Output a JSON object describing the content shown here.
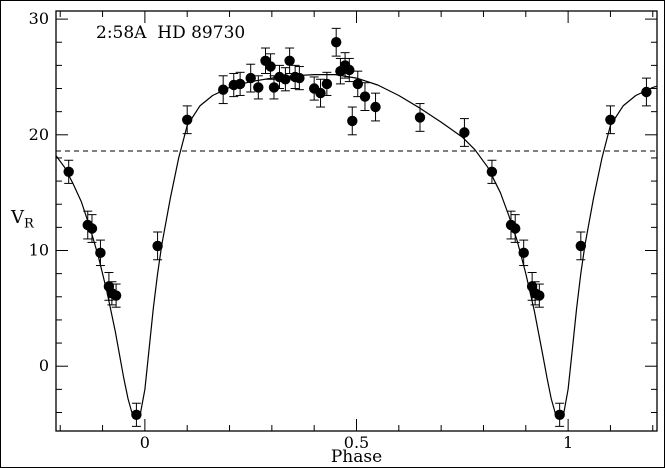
{
  "chart_data": {
    "type": "scatter",
    "title": "2:58A  HD 89730",
    "xlabel": "Phase",
    "ylabel": "V_R",
    "ylabel_display": {
      "main": "V",
      "sub": "R"
    },
    "xlim": [
      -0.21,
      1.21
    ],
    "ylim": [
      -5.6,
      30.7
    ],
    "x_major_ticks": [
      0,
      0.5,
      1
    ],
    "x_tick_labels": [
      "0",
      "0.5",
      "1"
    ],
    "x_minor_step": 0.1,
    "y_major_ticks": [
      0,
      10,
      20,
      30
    ],
    "y_tick_labels": [
      "0",
      "10",
      "20",
      "30"
    ],
    "y_minor_step": 2,
    "grid": false,
    "dashed_line_y": 18.6,
    "colors": {
      "marker": "#000000",
      "line": "#000000",
      "background": "#ffffff"
    },
    "points": [
      [
        -0.18,
        16.8,
        1.0
      ],
      [
        -0.135,
        12.2,
        1.2
      ],
      [
        -0.125,
        11.9,
        1.2
      ],
      [
        -0.105,
        9.8,
        1.1
      ],
      [
        -0.085,
        6.9,
        1.2
      ],
      [
        -0.078,
        6.3,
        1.0
      ],
      [
        -0.068,
        6.1,
        1.0
      ],
      [
        -0.02,
        -4.2,
        1.0
      ],
      [
        0.03,
        10.4,
        1.2
      ],
      [
        0.1,
        21.3,
        1.2
      ],
      [
        0.185,
        23.9,
        1.2
      ],
      [
        0.21,
        24.3,
        1.0
      ],
      [
        0.225,
        24.4,
        1.0
      ],
      [
        0.25,
        24.9,
        1.2
      ],
      [
        0.268,
        24.1,
        1.0
      ],
      [
        0.285,
        26.4,
        1.1
      ],
      [
        0.297,
        25.9,
        1.1
      ],
      [
        0.305,
        24.1,
        1.0
      ],
      [
        0.318,
        25.0,
        1.0
      ],
      [
        0.332,
        24.8,
        1.0
      ],
      [
        0.342,
        26.4,
        1.1
      ],
      [
        0.355,
        25.0,
        1.0
      ],
      [
        0.365,
        24.9,
        1.0
      ],
      [
        0.4,
        24.0,
        1.0
      ],
      [
        0.415,
        23.6,
        1.2
      ],
      [
        0.43,
        24.4,
        1.0
      ],
      [
        0.452,
        28.0,
        1.2
      ],
      [
        0.462,
        25.5,
        1.1
      ],
      [
        0.473,
        26.0,
        1.1
      ],
      [
        0.483,
        25.6,
        1.0
      ],
      [
        0.49,
        21.2,
        1.2
      ],
      [
        0.503,
        24.4,
        1.1
      ],
      [
        0.52,
        23.3,
        1.2
      ],
      [
        0.545,
        22.4,
        1.2
      ],
      [
        0.65,
        21.5,
        1.2
      ],
      [
        0.755,
        20.2,
        1.2
      ],
      [
        0.82,
        16.8,
        1.0
      ],
      [
        0.865,
        12.2,
        1.2
      ],
      [
        0.875,
        11.9,
        1.2
      ],
      [
        0.895,
        9.8,
        1.1
      ],
      [
        0.915,
        6.9,
        1.2
      ],
      [
        0.922,
        6.3,
        1.0
      ],
      [
        0.932,
        6.1,
        1.0
      ],
      [
        0.98,
        -4.2,
        1.0
      ],
      [
        1.03,
        10.4,
        1.2
      ],
      [
        1.1,
        21.3,
        1.2
      ],
      [
        1.185,
        23.7,
        1.2
      ]
    ],
    "fit_curve": [
      [
        -0.21,
        18.2
      ],
      [
        -0.19,
        17.2
      ],
      [
        -0.17,
        15.8
      ],
      [
        -0.15,
        14.2
      ],
      [
        -0.13,
        12.0
      ],
      [
        -0.11,
        9.5
      ],
      [
        -0.09,
        6.5
      ],
      [
        -0.07,
        3.0
      ],
      [
        -0.05,
        -1.0
      ],
      [
        -0.04,
        -2.8
      ],
      [
        -0.03,
        -4.1
      ],
      [
        -0.02,
        -4.6
      ],
      [
        -0.01,
        -4.0
      ],
      [
        0.0,
        -2.0
      ],
      [
        0.01,
        1.5
      ],
      [
        0.02,
        5.0
      ],
      [
        0.03,
        8.0
      ],
      [
        0.04,
        10.5
      ],
      [
        0.06,
        14.5
      ],
      [
        0.08,
        18.0
      ],
      [
        0.1,
        20.8
      ],
      [
        0.13,
        22.5
      ],
      [
        0.16,
        23.4
      ],
      [
        0.2,
        24.1
      ],
      [
        0.25,
        24.6
      ],
      [
        0.3,
        24.9
      ],
      [
        0.35,
        25.1
      ],
      [
        0.4,
        25.2
      ],
      [
        0.45,
        25.2
      ],
      [
        0.5,
        24.9
      ],
      [
        0.55,
        24.3
      ],
      [
        0.6,
        23.4
      ],
      [
        0.65,
        22.3
      ],
      [
        0.7,
        21.1
      ],
      [
        0.75,
        19.8
      ],
      [
        0.78,
        18.7
      ],
      [
        0.81,
        17.2
      ],
      [
        0.84,
        15.0
      ],
      [
        0.86,
        13.0
      ],
      [
        0.88,
        10.8
      ],
      [
        0.9,
        8.0
      ],
      [
        0.92,
        4.8
      ],
      [
        0.94,
        1.0
      ],
      [
        0.95,
        -1.0
      ],
      [
        0.96,
        -2.8
      ],
      [
        0.97,
        -4.1
      ],
      [
        0.98,
        -4.6
      ],
      [
        0.99,
        -4.0
      ],
      [
        1.0,
        -2.0
      ],
      [
        1.01,
        1.5
      ],
      [
        1.02,
        5.0
      ],
      [
        1.03,
        8.0
      ],
      [
        1.04,
        10.5
      ],
      [
        1.06,
        14.5
      ],
      [
        1.08,
        18.0
      ],
      [
        1.1,
        20.8
      ],
      [
        1.13,
        22.5
      ],
      [
        1.16,
        23.4
      ],
      [
        1.2,
        24.1
      ],
      [
        1.21,
        24.2
      ]
    ]
  }
}
